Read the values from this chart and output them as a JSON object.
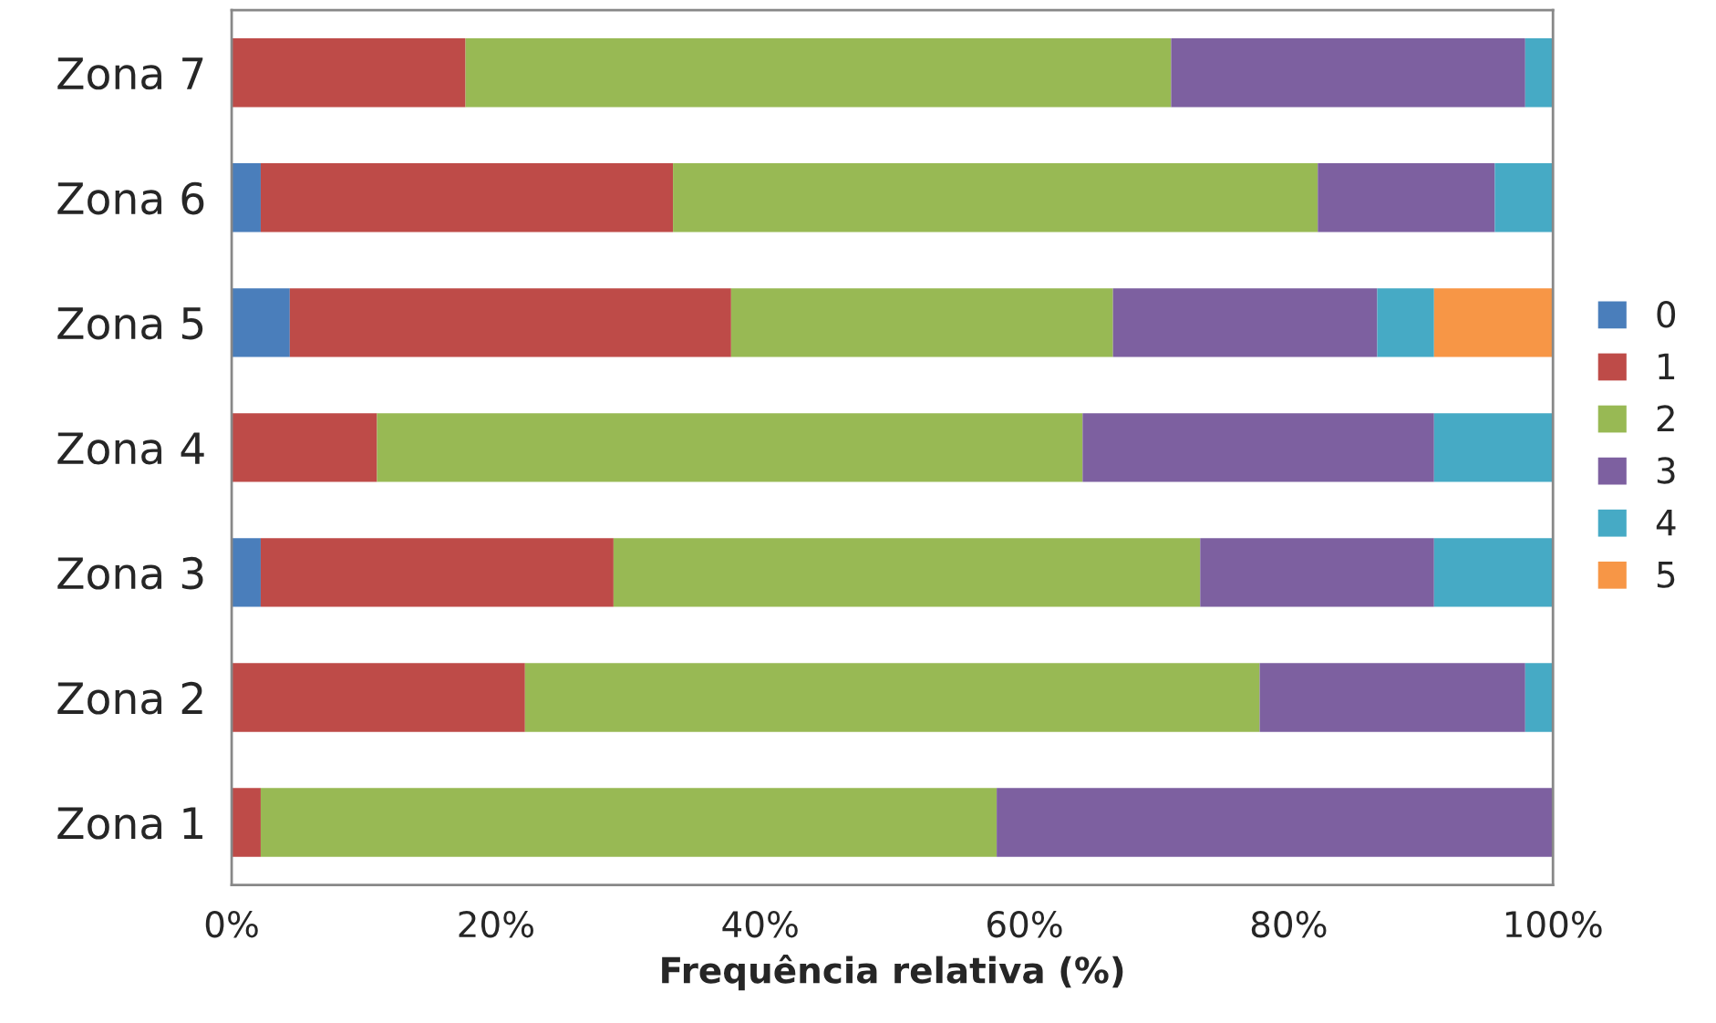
{
  "chart_data": {
    "type": "bar",
    "orientation": "horizontal",
    "stacked": true,
    "xlabel": "Frequência relativa (%)",
    "categories": [
      "Zona 7",
      "Zona 6",
      "Zona 5",
      "Zona 4",
      "Zona 3",
      "Zona 2",
      "Zona 1"
    ],
    "series": [
      {
        "name": "0",
        "color": "#4a7ebb",
        "values": [
          0,
          2.2,
          4.4,
          0,
          2.2,
          0,
          0
        ]
      },
      {
        "name": "1",
        "color": "#be4b48",
        "values": [
          17.7,
          31.2,
          33.4,
          11.0,
          26.7,
          22.2,
          2.2
        ]
      },
      {
        "name": "2",
        "color": "#98b954",
        "values": [
          53.4,
          48.8,
          28.9,
          53.4,
          44.4,
          55.6,
          55.7
        ]
      },
      {
        "name": "3",
        "color": "#7d60a0",
        "values": [
          26.8,
          13.4,
          20.0,
          26.6,
          17.7,
          20.1,
          42.1
        ]
      },
      {
        "name": "4",
        "color": "#46aac5",
        "values": [
          2.1,
          4.4,
          4.3,
          9.0,
          9.0,
          2.1,
          0
        ]
      },
      {
        "name": "5",
        "color": "#f79646",
        "values": [
          0,
          0,
          9.0,
          0,
          0,
          0,
          0
        ]
      }
    ],
    "xlim": [
      0,
      100
    ],
    "xticks": [
      {
        "value": 0,
        "label": "0%"
      },
      {
        "value": 20,
        "label": "20%"
      },
      {
        "value": 40,
        "label": "40%"
      },
      {
        "value": 60,
        "label": "60%"
      },
      {
        "value": 80,
        "label": "80%"
      },
      {
        "value": 100,
        "label": "100%"
      }
    ],
    "grid": false,
    "legend": "right"
  }
}
